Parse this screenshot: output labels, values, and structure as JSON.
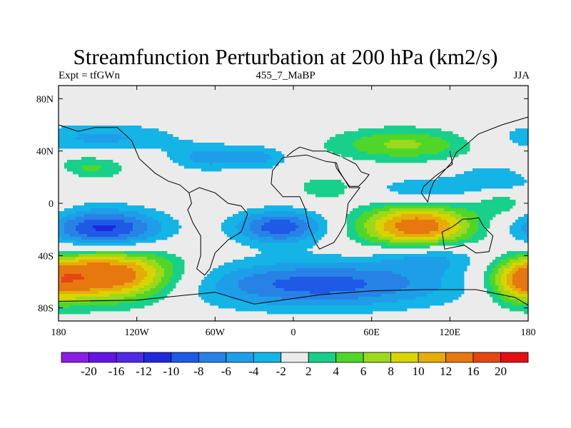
{
  "title": "Streamfunction Perturbation at 200 hPa (km2/s)",
  "subtitle_left": "Expt = tfGWn",
  "subtitle_center": "455_7_MaBP",
  "subtitle_right": "JJA",
  "y_ticks": [
    {
      "label": "80N",
      "lat": 80
    },
    {
      "label": "40N",
      "lat": 40
    },
    {
      "label": "0",
      "lat": 0
    },
    {
      "label": "40S",
      "lat": -40
    },
    {
      "label": "80S",
      "lat": -80
    }
  ],
  "x_ticks": [
    {
      "label": "180",
      "lon": -180
    },
    {
      "label": "120W",
      "lon": -120
    },
    {
      "label": "60W",
      "lon": -60
    },
    {
      "label": "0",
      "lon": 0
    },
    {
      "label": "60E",
      "lon": 60
    },
    {
      "label": "120E",
      "lon": 120
    },
    {
      "label": "180",
      "lon": 180
    }
  ],
  "colorbar": {
    "colors": [
      "#8a1ee6",
      "#6414e6",
      "#5028e6",
      "#1e28dc",
      "#1e5ae6",
      "#2882e6",
      "#1e9ee8",
      "#14b4e6",
      "#ebebeb",
      "#18d08c",
      "#50d628",
      "#9cd81c",
      "#d8d400",
      "#e6ac0a",
      "#e6780f",
      "#e64614",
      "#e60f14"
    ],
    "labels": [
      "-20",
      "-16",
      "-12",
      "-10",
      "-8",
      "-6",
      "-4",
      "-2",
      "2",
      "4",
      "6",
      "8",
      "10",
      "12",
      "16",
      "20"
    ]
  },
  "levels": [
    -20,
    -16,
    -12,
    -10,
    -8,
    -6,
    -4,
    -2,
    2,
    4,
    6,
    8,
    10,
    12,
    16,
    20
  ],
  "blobs": [
    {
      "name": "south-pacific-high",
      "lon": -140,
      "lat": -55,
      "amp": 15.5,
      "slon": 36,
      "slat": 14
    },
    {
      "name": "south-pacific-low",
      "lon": -145,
      "lat": -20,
      "amp": -11,
      "slon": 32,
      "slat": 11
    },
    {
      "name": "southern-ocean-low",
      "lon": 20,
      "lat": -62,
      "amp": -9,
      "slon": 75,
      "slat": 13
    },
    {
      "name": "south-atlantic-low",
      "lon": -10,
      "lat": -18,
      "amp": -9.5,
      "slon": 25,
      "slat": 9
    },
    {
      "name": "indian-ocean-high",
      "lon": 95,
      "lat": -18,
      "amp": 14,
      "slon": 32,
      "slat": 12
    },
    {
      "name": "asia-high",
      "lon": 85,
      "lat": 45,
      "amp": 6.5,
      "slon": 40,
      "slat": 9
    },
    {
      "name": "pacific-west-high",
      "lon": -158,
      "lat": 27,
      "amp": 5,
      "slon": 20,
      "slat": 7
    },
    {
      "name": "pacific-north-low",
      "lon": -150,
      "lat": 50,
      "amp": -4.5,
      "slon": 45,
      "slat": 8
    },
    {
      "name": "america-north-low",
      "lon": -65,
      "lat": 35,
      "amp": -5,
      "slon": 20,
      "slat": 7
    },
    {
      "name": "atlantic-north-low",
      "lon": -25,
      "lat": 35,
      "amp": -4.5,
      "slon": 15,
      "slat": 6
    },
    {
      "name": "africa-north-high",
      "lon": 25,
      "lat": 12,
      "amp": 4,
      "slon": 15,
      "slat": 6
    },
    {
      "name": "asia-mid-low",
      "lon": 100,
      "lat": 10,
      "amp": -4,
      "slon": 30,
      "slat": 7
    },
    {
      "name": "pacific-east-low",
      "lon": 160,
      "lat": 20,
      "amp": -4,
      "slon": 25,
      "slat": 8
    },
    {
      "name": "indian-south-low",
      "lon": 105,
      "lat": -40,
      "amp": -5,
      "slon": 30,
      "slat": 8
    },
    {
      "name": "australia-high",
      "lon": 160,
      "lat": 0,
      "amp": 3.5,
      "slon": 15,
      "slat": 7
    },
    {
      "name": "pacific-dateline-high",
      "lon": 175,
      "lat": -60,
      "amp": 9,
      "slon": 18,
      "slat": 12
    }
  ],
  "coastlines": [
    [
      [
        -80,
        8
      ],
      [
        -78,
        0
      ],
      [
        -81,
        -5
      ],
      [
        -77,
        -15
      ],
      [
        -71,
        -25
      ],
      [
        -71,
        -40
      ],
      [
        -74,
        -50
      ],
      [
        -68,
        -55
      ],
      [
        -64,
        -50
      ],
      [
        -60,
        -38
      ],
      [
        -50,
        -28
      ],
      [
        -40,
        -22
      ],
      [
        -35,
        -8
      ],
      [
        -40,
        -2
      ],
      [
        -50,
        0
      ],
      [
        -60,
        8
      ],
      [
        -72,
        12
      ],
      [
        -80,
        8
      ]
    ],
    [
      [
        -17,
        15
      ],
      [
        -16,
        25
      ],
      [
        -8,
        35
      ],
      [
        10,
        37
      ],
      [
        25,
        32
      ],
      [
        33,
        31
      ],
      [
        35,
        25
      ],
      [
        43,
        12
      ],
      [
        51,
        12
      ],
      [
        42,
        0
      ],
      [
        40,
        -15
      ],
      [
        35,
        -24
      ],
      [
        31,
        -30
      ],
      [
        20,
        -35
      ],
      [
        17,
        -30
      ],
      [
        12,
        -18
      ],
      [
        9,
        -4
      ],
      [
        5,
        5
      ],
      [
        -8,
        5
      ],
      [
        -17,
        15
      ]
    ],
    [
      [
        114,
        -22
      ],
      [
        122,
        -18
      ],
      [
        130,
        -12
      ],
      [
        136,
        -12
      ],
      [
        142,
        -11
      ],
      [
        146,
        -18
      ],
      [
        153,
        -25
      ],
      [
        150,
        -37
      ],
      [
        140,
        -38
      ],
      [
        131,
        -32
      ],
      [
        116,
        -35
      ],
      [
        114,
        -22
      ]
    ],
    [
      [
        -180,
        -75
      ],
      [
        -120,
        -74
      ],
      [
        -100,
        -72
      ],
      [
        -60,
        -68
      ],
      [
        -30,
        -77
      ],
      [
        20,
        -70
      ],
      [
        60,
        -67
      ],
      [
        100,
        -66
      ],
      [
        140,
        -66
      ],
      [
        170,
        -72
      ],
      [
        180,
        -78
      ],
      [
        180,
        -90
      ],
      [
        -180,
        -90
      ],
      [
        -180,
        -75
      ]
    ],
    [
      [
        120,
        40
      ],
      [
        122,
        30
      ],
      [
        109,
        21
      ],
      [
        100,
        13
      ],
      [
        98,
        8
      ],
      [
        103,
        1
      ],
      [
        105,
        10
      ],
      [
        108,
        17
      ],
      [
        113,
        22
      ],
      [
        121,
        31
      ],
      [
        125,
        39
      ],
      [
        129,
        42
      ],
      [
        135,
        47
      ],
      [
        142,
        53
      ],
      [
        160,
        60
      ],
      [
        180,
        66
      ]
    ],
    [
      [
        -180,
        60
      ],
      [
        -165,
        55
      ],
      [
        -152,
        58
      ],
      [
        -135,
        58
      ],
      [
        -124,
        48
      ],
      [
        -118,
        34
      ],
      [
        -106,
        23
      ],
      [
        -96,
        17
      ],
      [
        -87,
        14
      ],
      [
        -80,
        8
      ]
    ],
    [
      [
        -5,
        36
      ],
      [
        0,
        40
      ],
      [
        5,
        43
      ],
      [
        15,
        40
      ],
      [
        25,
        40
      ],
      [
        36,
        36
      ]
    ],
    [
      [
        32,
        31
      ],
      [
        33,
        27
      ],
      [
        43,
        13
      ],
      [
        50,
        13
      ],
      [
        55,
        18
      ],
      [
        58,
        22
      ],
      [
        52,
        24
      ],
      [
        48,
        30
      ],
      [
        38,
        35
      ]
    ]
  ]
}
